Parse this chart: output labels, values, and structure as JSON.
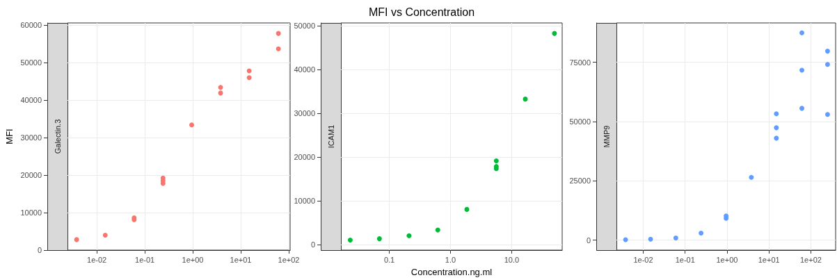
{
  "chart_data": [
    {
      "type": "scatter",
      "ylabel": "MFI",
      "log": "x",
      "grid": true,
      "marker": "circle",
      "tick_labels": "xy",
      "xlim": [
        0.00245,
        107
      ],
      "ylim": [
        0,
        60600
      ],
      "xticks": [
        {
          "value": 0.01,
          "label": "1e-02"
        },
        {
          "value": 0.1,
          "label": "1e-01"
        },
        {
          "value": 1,
          "label": "1e+00"
        },
        {
          "value": 10,
          "label": "1e+01"
        },
        {
          "value": 100,
          "label": "1e+02"
        }
      ],
      "yticks": [
        0,
        10000,
        20000,
        30000,
        40000,
        50000,
        60000
      ],
      "series": [
        {
          "name": "Galectin.3",
          "color": "#f8766d",
          "x": [
            0.0038,
            0.015,
            0.06,
            0.06,
            0.24,
            0.24,
            0.24,
            0.95,
            3.8,
            3.8,
            15,
            15,
            61,
            61
          ],
          "values": [
            2800,
            4000,
            8100,
            8600,
            17800,
            18500,
            19200,
            33400,
            41900,
            43400,
            46000,
            47800,
            53700,
            57800
          ]
        }
      ]
    },
    {
      "type": "scatter",
      "title": "MFI vs Concentration",
      "xlabel": "Concentration.ng.ml",
      "log": "x",
      "grid": true,
      "marker": "circle",
      "xlim": [
        0.0162,
        66.8
      ],
      "ylim": [
        -1300,
        50600
      ],
      "xticks": [
        0.1,
        {
          "value": 1,
          "label": "1.0"
        },
        {
          "value": 10,
          "label": "10.0"
        }
      ],
      "yticks": [
        0,
        10000,
        20000,
        30000,
        40000,
        50000
      ],
      "series": [
        {
          "name": "ICAM1",
          "color": "#00ba38",
          "x": [
            0.023,
            0.069,
            0.21,
            0.62,
            1.85,
            5.6,
            5.6,
            5.6,
            16.7,
            50
          ],
          "values": [
            1000,
            1300,
            2000,
            3300,
            8000,
            17300,
            17800,
            19100,
            33200,
            48200
          ]
        }
      ]
    },
    {
      "type": "scatter",
      "log": "x",
      "grid": true,
      "marker": "circle",
      "xlim": [
        0.0023,
        389
      ],
      "ylim": [
        -4200,
        91600
      ],
      "xticks": [
        {
          "value": 0.01,
          "label": "1e-02"
        },
        {
          "value": 0.1,
          "label": "1e-01"
        },
        {
          "value": 1,
          "label": "1e+00"
        },
        {
          "value": 10,
          "label": "1e+01"
        },
        {
          "value": 100,
          "label": "1e+02"
        }
      ],
      "yticks": [
        0,
        25000,
        50000,
        75000
      ],
      "series": [
        {
          "name": "MMP9",
          "color": "#619cff",
          "x": [
            0.0038,
            0.015,
            0.06,
            0.24,
            0.95,
            0.95,
            3.8,
            15,
            15,
            15,
            61,
            61,
            61,
            250,
            250,
            250
          ],
          "values": [
            200,
            400,
            900,
            3000,
            9200,
            10200,
            26500,
            43000,
            47400,
            53300,
            55600,
            71700,
            87400,
            53000,
            74100,
            79700
          ]
        }
      ]
    }
  ]
}
